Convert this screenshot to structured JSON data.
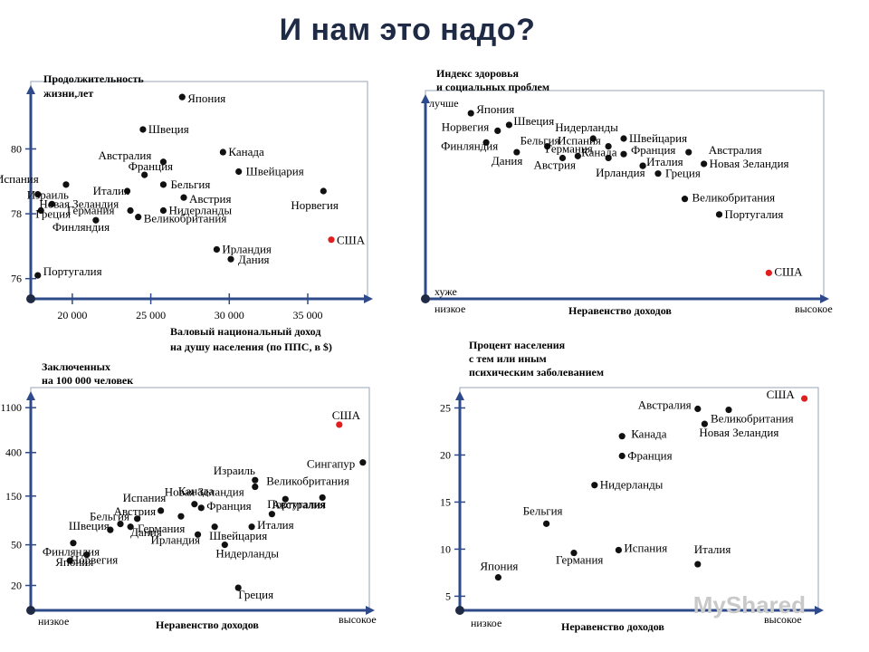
{
  "title": "И нам это надо?",
  "watermark": "MyShared",
  "chart_data": [
    {
      "type": "scatter",
      "ylabel": [
        "Продолжительность",
        "жизни,лет"
      ],
      "xlabel": [
        "Валовый национальный доход",
        "на душу населения (по ППС, в $)"
      ],
      "x_ticks": [
        {
          "v": 20000,
          "t": "20 000"
        },
        {
          "v": 25000,
          "t": "25 000"
        },
        {
          "v": 30000,
          "t": "30 000"
        },
        {
          "v": 35000,
          "t": "35 000"
        }
      ],
      "y_ticks": [
        {
          "v": 76,
          "t": "76"
        },
        {
          "v": 78,
          "t": "78"
        },
        {
          "v": 80,
          "t": "80"
        }
      ],
      "xlim": [
        17700,
        38000
      ],
      "ylim": [
        75.6,
        81.8
      ],
      "points": [
        {
          "label": "Япония",
          "x": 27000,
          "y": 81.6
        },
        {
          "label": "Швеция",
          "x": 24500,
          "y": 80.6
        },
        {
          "label": "Канада",
          "x": 29600,
          "y": 79.9
        },
        {
          "label": "Австралия",
          "x": 25800,
          "y": 79.6
        },
        {
          "label": "Франция",
          "x": 24600,
          "y": 79.2
        },
        {
          "label": "Швейцария",
          "x": 30600,
          "y": 79.3
        },
        {
          "label": "Испания",
          "x": 19600,
          "y": 78.9
        },
        {
          "label": "Италия",
          "x": 23500,
          "y": 78.7
        },
        {
          "label": "Бельгия",
          "x": 25800,
          "y": 78.9
        },
        {
          "label": "Израиль",
          "x": 17800,
          "y": 78.6
        },
        {
          "label": "Новая Зеландия",
          "x": 18700,
          "y": 78.3
        },
        {
          "label": "Австрия",
          "x": 27100,
          "y": 78.5
        },
        {
          "label": "Греция",
          "x": 18000,
          "y": 78.1
        },
        {
          "label": "Германия",
          "x": 23700,
          "y": 78.1
        },
        {
          "label": "Нидерланды",
          "x": 25800,
          "y": 78.1
        },
        {
          "label": "Финляндия",
          "x": 21500,
          "y": 77.8
        },
        {
          "label": "Великобритания",
          "x": 24200,
          "y": 77.9
        },
        {
          "label": "Норвегия",
          "x": 36000,
          "y": 78.7
        },
        {
          "label": "США",
          "x": 36500,
          "y": 77.2,
          "highlight": true
        },
        {
          "label": "Ирландия",
          "x": 29200,
          "y": 76.9
        },
        {
          "label": "Дания",
          "x": 30100,
          "y": 76.6
        },
        {
          "label": "Португалия",
          "x": 17800,
          "y": 76.1
        }
      ]
    },
    {
      "type": "scatter",
      "ylabel": [
        "Индекс здоровья",
        "и социальных проблем"
      ],
      "xlabel": [
        "Неравенство доходов"
      ],
      "x_end_labels": [
        "низкое",
        "высокое"
      ],
      "y_end_labels": [
        "лучше",
        "хуже"
      ],
      "xlim": [
        0,
        10
      ],
      "ylim": [
        0,
        10
      ],
      "points": [
        {
          "label": "Япония",
          "x": 1.0,
          "y": 9.3
        },
        {
          "label": "Норвегия",
          "x": 1.7,
          "y": 8.4
        },
        {
          "label": "Швеция",
          "x": 2.0,
          "y": 8.7
        },
        {
          "label": "Финляндия",
          "x": 1.4,
          "y": 7.8
        },
        {
          "label": "Дания",
          "x": 2.2,
          "y": 7.3
        },
        {
          "label": "Бельгия",
          "x": 3.0,
          "y": 7.6
        },
        {
          "label": "Нидерланды",
          "x": 4.2,
          "y": 8.0
        },
        {
          "label": "Испания",
          "x": 4.6,
          "y": 7.6
        },
        {
          "label": "Швейцария",
          "x": 5.0,
          "y": 8.0
        },
        {
          "label": "Германия",
          "x": 3.8,
          "y": 7.1
        },
        {
          "label": "Франция",
          "x": 5.0,
          "y": 7.2
        },
        {
          "label": "Австрия",
          "x": 3.4,
          "y": 7.0
        },
        {
          "label": "Канада",
          "x": 4.6,
          "y": 7.0
        },
        {
          "label": "Италия",
          "x": 5.5,
          "y": 6.6
        },
        {
          "label": "Ирландия",
          "x": 5.5,
          "y": 6.6
        },
        {
          "label": "Австралия",
          "x": 6.7,
          "y": 7.3
        },
        {
          "label": "Новая Зеландия",
          "x": 7.1,
          "y": 6.7
        },
        {
          "label": "Греция",
          "x": 5.9,
          "y": 6.2
        },
        {
          "label": "Великобритания",
          "x": 6.6,
          "y": 4.9
        },
        {
          "label": "Португалия",
          "x": 7.5,
          "y": 4.1
        },
        {
          "label": "США",
          "x": 8.8,
          "y": 1.1,
          "highlight": true
        }
      ]
    },
    {
      "type": "scatter",
      "ylabel": [
        "Заключенных",
        "на 100 000 человек"
      ],
      "xlabel": [
        "Неравенство доходов"
      ],
      "x_end_labels": [
        "низкое",
        "высокое"
      ],
      "y_ticks": [
        {
          "v": 20,
          "t": "20"
        },
        {
          "v": 50,
          "t": "50"
        },
        {
          "v": 150,
          "t": "150"
        },
        {
          "v": 400,
          "t": "400"
        },
        {
          "v": 1100,
          "t": "1100"
        }
      ],
      "ylog": true,
      "xlim": [
        0,
        10
      ],
      "ylim": [
        14,
        1300
      ],
      "points": [
        {
          "label": "США",
          "x": 9.0,
          "y": 750,
          "highlight": true
        },
        {
          "label": "Сингапур",
          "x": 9.7,
          "y": 320
        },
        {
          "label": "Израиль",
          "x": 6.5,
          "y": 215
        },
        {
          "label": "Новая Зеландия",
          "x": 6.5,
          "y": 185
        },
        {
          "label": "Великобритания",
          "x": 8.5,
          "y": 145
        },
        {
          "label": "Португалия",
          "x": 7.4,
          "y": 140
        },
        {
          "label": "Канада",
          "x": 4.7,
          "y": 125
        },
        {
          "label": "Франция",
          "x": 4.9,
          "y": 115
        },
        {
          "label": "Испания",
          "x": 3.7,
          "y": 108
        },
        {
          "label": "Австралия",
          "x": 7.0,
          "y": 100
        },
        {
          "label": "Австрия",
          "x": 3.0,
          "y": 90
        },
        {
          "label": "Германия",
          "x": 4.3,
          "y": 95
        },
        {
          "label": "Бельгия",
          "x": 2.5,
          "y": 80
        },
        {
          "label": "Швеция",
          "x": 2.2,
          "y": 70
        },
        {
          "label": "Дания",
          "x": 2.8,
          "y": 75
        },
        {
          "label": "Италия",
          "x": 6.4,
          "y": 75
        },
        {
          "label": "Швейцария",
          "x": 5.3,
          "y": 75
        },
        {
          "label": "Ирландия",
          "x": 4.8,
          "y": 63
        },
        {
          "label": "Финляндия",
          "x": 1.1,
          "y": 52
        },
        {
          "label": "Нидерланды",
          "x": 5.6,
          "y": 50
        },
        {
          "label": "Норвегия",
          "x": 1.5,
          "y": 40
        },
        {
          "label": "Япония",
          "x": 1.0,
          "y": 35
        },
        {
          "label": "Греция",
          "x": 6.0,
          "y": 19
        }
      ]
    },
    {
      "type": "scatter",
      "ylabel": [
        "Процент населения",
        "с тем или иным",
        "психическим заболеванием"
      ],
      "xlabel": [
        "Неравенство доходов"
      ],
      "x_end_labels": [
        "низкое",
        "высокое"
      ],
      "y_ticks": [
        {
          "v": 5,
          "t": "5"
        },
        {
          "v": 10,
          "t": "10"
        },
        {
          "v": 15,
          "t": "15"
        },
        {
          "v": 20,
          "t": "20"
        },
        {
          "v": 25,
          "t": "25"
        }
      ],
      "xlim": [
        0,
        10
      ],
      "ylim": [
        3.5,
        26.2
      ],
      "points": [
        {
          "label": "США",
          "x": 9.7,
          "y": 26.0,
          "highlight": true
        },
        {
          "label": "Австралия",
          "x": 6.6,
          "y": 24.9
        },
        {
          "label": "Великобритания",
          "x": 7.5,
          "y": 24.8
        },
        {
          "label": "Новая Зеландия",
          "x": 6.8,
          "y": 23.3
        },
        {
          "label": "Канада",
          "x": 4.4,
          "y": 22.0
        },
        {
          "label": "Франция",
          "x": 4.4,
          "y": 19.9
        },
        {
          "label": "Нидерланды",
          "x": 3.6,
          "y": 16.8
        },
        {
          "label": "Бельгия",
          "x": 2.2,
          "y": 12.7
        },
        {
          "label": "Испания",
          "x": 4.3,
          "y": 9.9
        },
        {
          "label": "Германия",
          "x": 3.0,
          "y": 9.6
        },
        {
          "label": "Италия",
          "x": 6.6,
          "y": 8.4
        },
        {
          "label": "Япония",
          "x": 0.8,
          "y": 7.0
        }
      ]
    }
  ]
}
